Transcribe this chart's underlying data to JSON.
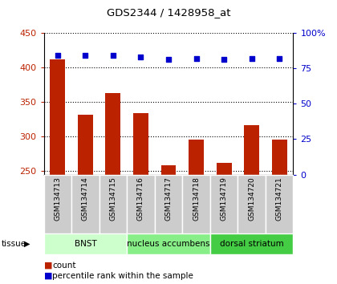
{
  "title": "GDS2344 / 1428958_at",
  "samples": [
    "GSM134713",
    "GSM134714",
    "GSM134715",
    "GSM134716",
    "GSM134717",
    "GSM134718",
    "GSM134719",
    "GSM134720",
    "GSM134721"
  ],
  "counts": [
    411,
    332,
    363,
    334,
    258,
    296,
    262,
    316,
    296
  ],
  "percentiles": [
    84,
    84,
    84,
    83,
    81,
    82,
    81,
    82,
    82
  ],
  "ylim_left": [
    245,
    450
  ],
  "ylim_right": [
    0,
    100
  ],
  "yticks_left": [
    250,
    300,
    350,
    400,
    450
  ],
  "yticks_right": [
    0,
    25,
    50,
    75,
    100
  ],
  "bar_color": "#bb2200",
  "scatter_color": "#0000cc",
  "grid_color": "#000000",
  "tissue_groups": [
    {
      "label": "BNST",
      "start": 0,
      "end": 3,
      "color": "#ccffcc"
    },
    {
      "label": "nucleus accumbens",
      "start": 3,
      "end": 6,
      "color": "#88ee88"
    },
    {
      "label": "dorsal striatum",
      "start": 6,
      "end": 9,
      "color": "#44cc44"
    }
  ],
  "tissue_label": "tissue",
  "legend_count_label": "count",
  "legend_pct_label": "percentile rank within the sample",
  "bar_width": 0.55,
  "sample_box_color": "#cccccc",
  "background_color": "#ffffff"
}
